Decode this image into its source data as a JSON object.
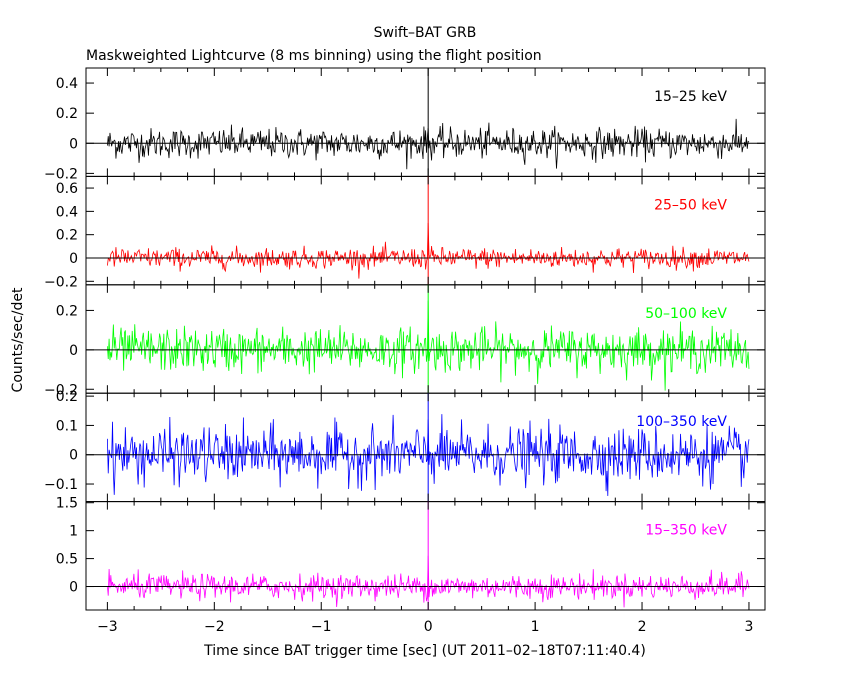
{
  "title": "Swift–BAT GRB",
  "subtitle": "Maskweighted Lightcurve (8 ms binning) using the flight position",
  "chart_data": {
    "type": "line",
    "xlabel": "Time since BAT trigger time [sec] (UT 2011–02–18T07:11:40.4)",
    "ylabel": "Counts/sec/det",
    "xlim": [
      -3.2,
      3.15
    ],
    "x_ticks": [
      -3,
      -2,
      -1,
      0,
      1,
      2,
      3
    ],
    "x_tick_labels": [
      "−3",
      "−2",
      "−1",
      "0",
      "1",
      "2",
      "3"
    ],
    "trigger_marker_x": 0,
    "data_x_range": [
      -3.0,
      3.0
    ],
    "bin_size_sec": 0.008,
    "panels": [
      {
        "label": "15–25 keV",
        "color": "#000000",
        "ylim": [
          -0.22,
          0.5
        ],
        "y_ticks": [
          -0.2,
          0,
          0.2,
          0.4
        ],
        "y_tick_labels": [
          "−0.2",
          "0",
          "0.2",
          "0.4"
        ],
        "noise_amplitude": 0.09,
        "spike_at_zero": 0.1
      },
      {
        "label": "25–50 keV",
        "color": "#ff0000",
        "ylim": [
          -0.23,
          0.7
        ],
        "y_ticks": [
          -0.2,
          0,
          0.2,
          0.4,
          0.6
        ],
        "y_tick_labels": [
          "−0.2",
          "0",
          "0.2",
          "0.4",
          "0.6"
        ],
        "noise_amplitude": 0.08,
        "spike_at_zero": 0.3
      },
      {
        "label": "50–100 keV",
        "color": "#00ff00",
        "ylim": [
          -0.22,
          0.33
        ],
        "y_ticks": [
          -0.2,
          0,
          0.2
        ],
        "y_tick_labels": [
          "−0.2",
          "0",
          "0.2"
        ],
        "noise_amplitude": 0.1,
        "spike_at_zero": 0.25
      },
      {
        "label": "100–350 keV",
        "color": "#0000ff",
        "ylim": [
          -0.16,
          0.21
        ],
        "y_ticks": [
          -0.1,
          0,
          0.1,
          0.2
        ],
        "y_tick_labels": [
          "−0.1",
          "0",
          "0.1",
          "0.2"
        ],
        "noise_amplitude": 0.085,
        "spike_at_zero": 0.12
      },
      {
        "label": "15–350 keV",
        "color": "#ff00ff",
        "ylim": [
          -0.42,
          1.52
        ],
        "y_ticks": [
          0,
          0.5,
          1,
          1.5
        ],
        "y_tick_labels": [
          "0",
          "0.5",
          "1",
          "1.5"
        ],
        "noise_amplitude": 0.2,
        "spike_at_zero": 0.55
      }
    ]
  }
}
